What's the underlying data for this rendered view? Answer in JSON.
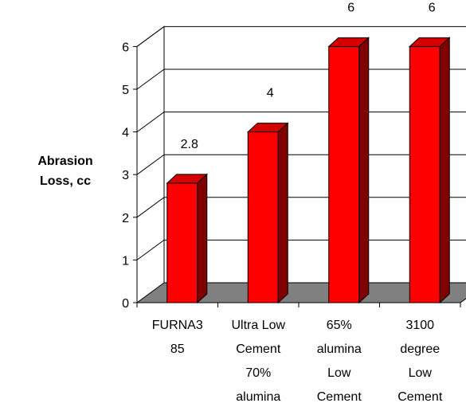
{
  "chart_data": {
    "type": "bar",
    "title": "",
    "xlabel": "",
    "ylabel": "Abrasion\nLoss, cc",
    "categories": [
      [
        "FURNA3",
        "85"
      ],
      [
        "Ultra Low",
        "Cement",
        "70%",
        "alumina"
      ],
      [
        "65%",
        "alumina",
        "Low",
        "Cement"
      ],
      [
        "3100",
        "degree",
        "Low",
        "Cement"
      ]
    ],
    "values": [
      2.8,
      4,
      6,
      6
    ],
    "data_labels": [
      "2.8",
      "4",
      "6",
      "6"
    ],
    "yticks": [
      "0",
      "1",
      "2",
      "3",
      "4",
      "5",
      "6"
    ],
    "ylim": [
      0,
      6
    ],
    "grid": true,
    "three_d": true,
    "colors": {
      "bar_front": "#ff0000",
      "bar_top": "#d40000",
      "bar_side": "#800000",
      "floor": "#808080",
      "grid": "#000000"
    }
  }
}
